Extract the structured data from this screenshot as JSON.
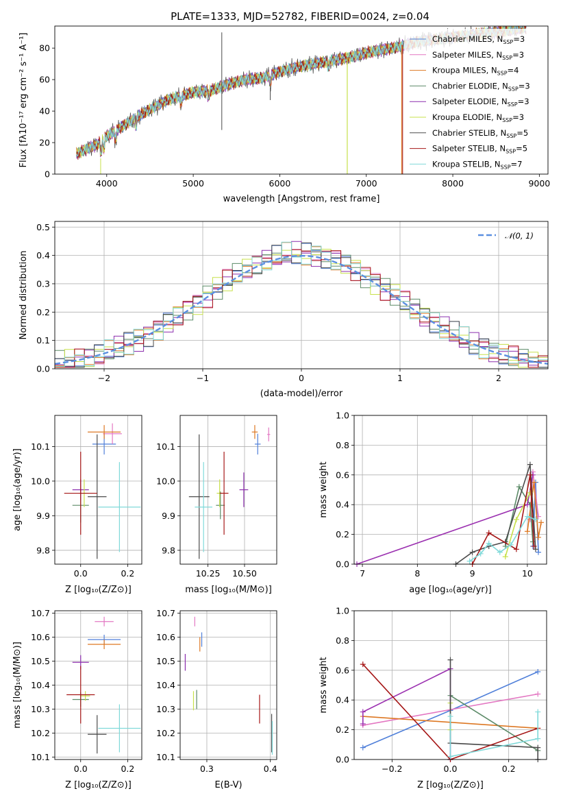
{
  "colors": {
    "series": [
      "#4f7fd9",
      "#e377c2",
      "#dd7722",
      "#5b8a67",
      "#8b2dad",
      "#c7e04a",
      "#4a4a4a",
      "#a51515",
      "#7fd9d9"
    ],
    "purple_line": "#9b30b0",
    "normal_dashed": "#5b8fe0",
    "grid": "#b0b0b0"
  },
  "chart_data": [
    {
      "id": "spectrum",
      "type": "line",
      "title": "PLATE=1333, MJD=52782, FIBERID=0024, z=0.04",
      "xlabel": "wavelength [Angstrom, rest frame]",
      "ylabel": "Flux [f_λ10^-17 erg cm^-2 s^-1 A^-1]",
      "xlim": [
        3400,
        9100
      ],
      "ylim": [
        0,
        94
      ],
      "xticks": [
        "4000",
        "5000",
        "6000",
        "7000",
        "8000",
        "9000"
      ],
      "yticks": [
        "0",
        "20",
        "40",
        "60",
        "80"
      ],
      "grid": false,
      "legend_placement": "right",
      "series_names": [
        "Chabrier MILES, N_SSP=3",
        "Salpeter MILES, N_SSP=3",
        "Kroupa MILES, N_SSP=4",
        "Chabrier ELODIE, N_SSP=3",
        "Salpeter ELODIE, N_SSP=3",
        "Kroupa ELODIE, N_SSP=3",
        "Chabrier STELIB, N_SSP=5",
        "Salpeter STELIB, N_SSP=5",
        "Kroupa STELIB, N_SSP=7"
      ],
      "continuum": [
        [
          3650,
          13
        ],
        [
          3900,
          19
        ],
        [
          4000,
          24
        ],
        [
          4200,
          31
        ],
        [
          4400,
          38
        ],
        [
          4700,
          47
        ],
        [
          5000,
          52
        ],
        [
          5200,
          53
        ],
        [
          5400,
          57
        ],
        [
          5600,
          60
        ],
        [
          5800,
          61
        ],
        [
          6000,
          65
        ],
        [
          6200,
          68
        ],
        [
          6500,
          71
        ],
        [
          6800,
          74
        ],
        [
          7000,
          77
        ],
        [
          7300,
          80
        ],
        [
          7600,
          84
        ],
        [
          8000,
          87
        ],
        [
          8500,
          90
        ],
        [
          8800,
          93
        ]
      ]
    },
    {
      "id": "residuals",
      "type": "line",
      "xlabel": "(data-model)/error",
      "ylabel": "Normed distribution",
      "xlim": [
        -2.5,
        2.5
      ],
      "ylim": [
        0,
        0.52
      ],
      "xticks": [
        "−2",
        "−1",
        "0",
        "1",
        "2"
      ],
      "yticks": [
        "0.0",
        "0.1",
        "0.2",
        "0.3",
        "0.4",
        "0.5"
      ],
      "grid": true,
      "legend": "𝒩(0, 1)",
      "legend_placement": "top-right"
    },
    {
      "id": "age_vs_Z",
      "type": "scatter",
      "xlabel_main": "Z [log",
      "xlabel_sub": "10",
      "xlabel_rest": "(Z/Z",
      "xlabel_sun": "⊙",
      "xlabel_close": ")]",
      "ylabel": "age  [log10(age/yr)]",
      "xlim": [
        -0.11,
        0.26
      ],
      "ylim": [
        9.76,
        10.19
      ],
      "xticks": [
        "0.0",
        "0.2"
      ],
      "yticks": [
        "9.8",
        "9.9",
        "10.0",
        "10.1"
      ],
      "points": [
        {
          "x": 0.1,
          "y": 10.107,
          "xerr": 0.05,
          "yerr": 0.03
        },
        {
          "x": 0.135,
          "y": 10.137,
          "xerr": 0.04,
          "yerr": 0.03
        },
        {
          "x": 0.1,
          "y": 10.142,
          "xerr": 0.07,
          "yerr": 0.02
        },
        {
          "x": 0.0,
          "y": 9.93,
          "xerr": 0.035,
          "yerr": 0.05
        },
        {
          "x": 0.0,
          "y": 9.975,
          "xerr": 0.035,
          "yerr": 0.03
        },
        {
          "x": 0.015,
          "y": 9.965,
          "xerr": 0.02,
          "yerr": 0.04
        },
        {
          "x": 0.07,
          "y": 9.955,
          "xerr": 0.04,
          "yerr": 0.18
        },
        {
          "x": 0.0,
          "y": 9.965,
          "xerr": 0.07,
          "yerr": 0.12
        },
        {
          "x": 0.165,
          "y": 9.925,
          "xerr": 0.09,
          "yerr": 0.13
        }
      ]
    },
    {
      "id": "age_vs_mass",
      "type": "scatter",
      "xlabel": "mass [log10(M/M⊙)]",
      "xlim": [
        10.06,
        10.72
      ],
      "ylim": [
        9.76,
        10.19
      ],
      "xticks": [
        "10.25",
        "10.50"
      ],
      "yticks": [
        "9.8",
        "9.9",
        "10.0",
        "10.1"
      ],
      "points": [
        {
          "x": 10.59,
          "y": 10.107,
          "xerr": 0.02,
          "yerr": 0.03
        },
        {
          "x": 10.665,
          "y": 10.135,
          "xerr": 0.01,
          "yerr": 0.02
        },
        {
          "x": 10.57,
          "y": 10.142,
          "xerr": 0.02,
          "yerr": 0.02
        },
        {
          "x": 10.335,
          "y": 9.93,
          "xerr": 0.03,
          "yerr": 0.04
        },
        {
          "x": 10.495,
          "y": 9.975,
          "xerr": 0.03,
          "yerr": 0.05
        },
        {
          "x": 10.33,
          "y": 9.965,
          "xerr": 0.02,
          "yerr": 0.04
        },
        {
          "x": 10.19,
          "y": 9.955,
          "xerr": 0.07,
          "yerr": 0.18
        },
        {
          "x": 10.36,
          "y": 9.965,
          "xerr": 0.03,
          "yerr": 0.12
        },
        {
          "x": 10.22,
          "y": 9.925,
          "xerr": 0.06,
          "yerr": 0.13
        }
      ]
    },
    {
      "id": "massweight_vs_age",
      "type": "line",
      "xlabel": "age  [log10(age/yr)]",
      "ylabel": "mass weight",
      "xlim": [
        6.85,
        10.35
      ],
      "ylim": [
        0,
        1.0
      ],
      "xticks": [
        "7",
        "8",
        "9",
        "10"
      ],
      "yticks": [
        "0.0",
        "0.2",
        "0.4",
        "0.6",
        "0.8",
        "1.0"
      ],
      "grid": true,
      "series": [
        {
          "x": [
            10.1,
            10.15,
            10.2
          ],
          "y": [
            0.12,
            0.55,
            0.08
          ]
        },
        {
          "x": [
            10.05,
            10.1,
            10.2
          ],
          "y": [
            0.3,
            0.62,
            0.32
          ]
        },
        {
          "x": [
            10.0,
            10.12,
            10.2,
            10.25
          ],
          "y": [
            0.22,
            0.55,
            0.18,
            0.28
          ]
        },
        {
          "x": [
            9.6,
            9.85,
            10.05,
            10.1
          ],
          "y": [
            0.12,
            0.52,
            0.4,
            0.15
          ]
        },
        {
          "x": [
            6.9,
            10.0,
            10.1
          ],
          "y": [
            0.0,
            0.4,
            0.6
          ]
        },
        {
          "x": [
            9.6,
            9.8,
            10.05
          ],
          "y": [
            0.05,
            0.3,
            0.48
          ]
        },
        {
          "x": [
            8.7,
            9.0,
            9.3,
            9.6,
            10.05,
            10.15
          ],
          "y": [
            0.0,
            0.08,
            0.12,
            0.15,
            0.67,
            0.1
          ]
        },
        {
          "x": [
            9.0,
            9.3,
            9.8,
            10.05,
            10.12
          ],
          "y": [
            0.0,
            0.21,
            0.1,
            0.6,
            0.12
          ]
        },
        {
          "x": [
            8.95,
            9.15,
            9.3,
            9.5,
            9.7,
            10.0,
            10.15
          ],
          "y": [
            0.02,
            0.07,
            0.14,
            0.08,
            0.13,
            0.32,
            0.3
          ]
        }
      ]
    },
    {
      "id": "mass_vs_Z",
      "type": "scatter",
      "xlabel": "Z [log10(Z/Z⊙)]",
      "ylabel": "mass [log10(M/M⊙)]",
      "xlim": [
        -0.11,
        0.26
      ],
      "ylim": [
        10.09,
        10.71
      ],
      "xticks": [
        "0.0",
        "0.2"
      ],
      "yticks": [
        "10.1",
        "10.2",
        "10.3",
        "10.4",
        "10.5",
        "10.6",
        "10.7"
      ],
      "points": [
        {
          "x": 0.1,
          "y": 10.59,
          "xerr": 0.07,
          "yerr": 0.02
        },
        {
          "x": 0.1,
          "y": 10.665,
          "xerr": 0.04,
          "yerr": 0.02
        },
        {
          "x": 0.1,
          "y": 10.57,
          "xerr": 0.07,
          "yerr": 0.02
        },
        {
          "x": 0.0,
          "y": 10.34,
          "xerr": 0.035,
          "yerr": 0.03
        },
        {
          "x": 0.0,
          "y": 10.495,
          "xerr": 0.035,
          "yerr": 0.03
        },
        {
          "x": 0.02,
          "y": 10.355,
          "xerr": 0.02,
          "yerr": 0.02
        },
        {
          "x": 0.07,
          "y": 10.195,
          "xerr": 0.04,
          "yerr": 0.08
        },
        {
          "x": 0.0,
          "y": 10.36,
          "xerr": 0.06,
          "yerr": 0.12
        },
        {
          "x": 0.165,
          "y": 10.22,
          "xerr": 0.09,
          "yerr": 0.1
        }
      ]
    },
    {
      "id": "mass_vs_ebv",
      "type": "scatter",
      "xlabel": "E(B-V)",
      "xlim": [
        0.258,
        0.41
      ],
      "ylim": [
        10.09,
        10.71
      ],
      "xticks": [
        "0.3",
        "0.4"
      ],
      "yticks": [
        "10.1",
        "10.2",
        "10.3",
        "10.4",
        "10.5",
        "10.6",
        "10.7"
      ],
      "points": [
        {
          "x": 0.292,
          "y": 10.59,
          "yerr": 0.03
        },
        {
          "x": 0.281,
          "y": 10.665,
          "yerr": 0.02
        },
        {
          "x": 0.289,
          "y": 10.57,
          "yerr": 0.03
        },
        {
          "x": 0.284,
          "y": 10.34,
          "yerr": 0.04
        },
        {
          "x": 0.266,
          "y": 10.495,
          "yerr": 0.035
        },
        {
          "x": 0.279,
          "y": 10.335,
          "yerr": 0.04
        },
        {
          "x": 0.402,
          "y": 10.2,
          "yerr": 0.08
        },
        {
          "x": 0.383,
          "y": 10.3,
          "yerr": 0.06
        },
        {
          "x": 0.403,
          "y": 10.18,
          "yerr": 0.07
        }
      ]
    },
    {
      "id": "massweight_vs_Z",
      "type": "line",
      "xlabel": "Z [log10(Z/Z⊙)]",
      "ylabel": "mass weight",
      "xlim": [
        -0.33,
        0.33
      ],
      "ylim": [
        0,
        1.0
      ],
      "xticks": [
        "−0.2",
        "0.0",
        "0.2"
      ],
      "yticks": [
        "0.0",
        "0.2",
        "0.4",
        "0.6",
        "0.8",
        "1.0"
      ],
      "grid": true,
      "series": [
        {
          "x": [
            -0.3,
            0.0,
            0.3
          ],
          "y": [
            0.08,
            0.33,
            0.59
          ]
        },
        {
          "x": [
            -0.3,
            0.3
          ],
          "y": [
            0.23,
            0.44
          ]
        },
        {
          "x": [
            -0.3,
            0.3
          ],
          "y": [
            0.29,
            0.21
          ]
        },
        {
          "x": [
            0.0,
            0.3
          ],
          "y": [
            0.43,
            0.06
          ]
        },
        {
          "x": [
            -0.3,
            -0.3,
            0.0,
            0.0
          ],
          "y": [
            0.24,
            0.32,
            0.61,
            0.0
          ]
        },
        {
          "x": [
            0.0,
            0.0
          ],
          "y": [
            0.38,
            0.2
          ]
        },
        {
          "x": [
            0.0,
            0.0,
            0.3,
            0.3
          ],
          "y": [
            0.67,
            0.11,
            0.08,
            0.0
          ]
        },
        {
          "x": [
            -0.3,
            0.0,
            0.3
          ],
          "y": [
            0.64,
            0.0,
            0.21
          ]
        },
        {
          "x": [
            0.0,
            0.0,
            0.3,
            0.3
          ],
          "y": [
            0.29,
            0.02,
            0.14,
            0.32
          ]
        }
      ]
    }
  ]
}
